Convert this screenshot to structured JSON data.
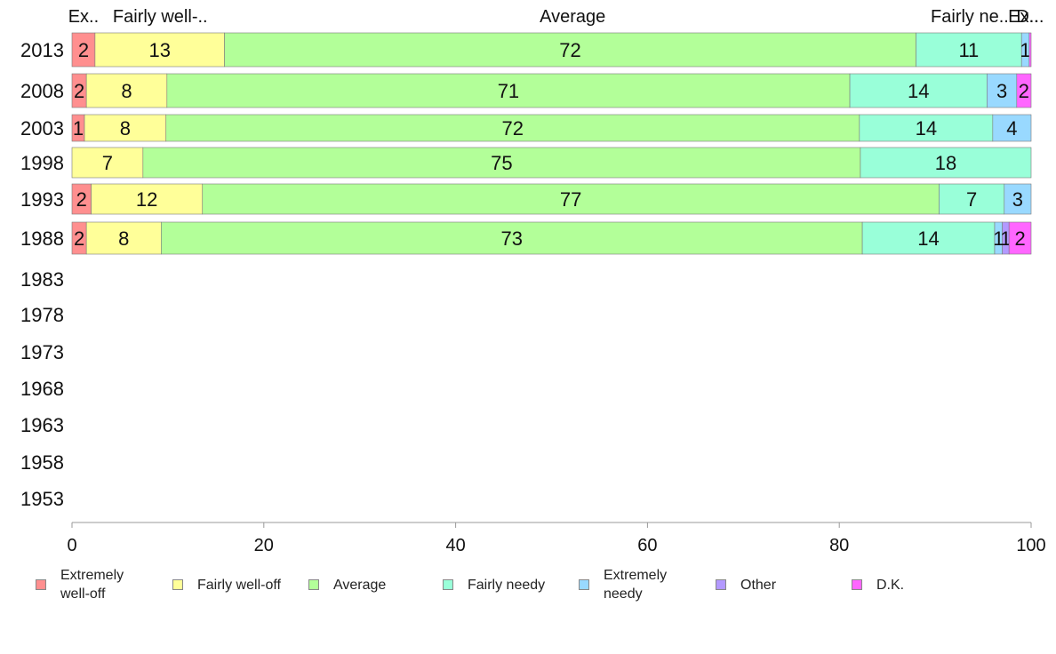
{
  "chart_data": {
    "type": "bar",
    "orientation": "horizontal",
    "stacked": true,
    "categories": [
      "2013",
      "2008",
      "2003",
      "1998",
      "1993",
      "1988",
      "1983",
      "1978",
      "1973",
      "1968",
      "1963",
      "1958",
      "1953"
    ],
    "top_labels": [
      "Ex..",
      "Fairly well-..",
      "Average",
      "Fairly ne..",
      "Ex..",
      "D..."
    ],
    "series": [
      {
        "name": "Extremely\nwell-off",
        "color": "#ff8f8f",
        "values": [
          2.4,
          1.5,
          1.3,
          0,
          2.0,
          1.5,
          null,
          null,
          null,
          null,
          null,
          null,
          null
        ],
        "labels": [
          "2",
          "2",
          "1",
          "",
          "2",
          "2"
        ]
      },
      {
        "name": "Fairly well-off",
        "color": "#ffff99",
        "values": [
          13.5,
          8.4,
          8.5,
          7.4,
          11.6,
          7.8,
          null,
          null,
          null,
          null,
          null,
          null,
          null
        ],
        "labels": [
          "13",
          "8",
          "8",
          "7",
          "12",
          "8"
        ]
      },
      {
        "name": "Average",
        "color": "#b3ff99",
        "values": [
          72.1,
          71.2,
          72.3,
          74.8,
          76.8,
          73.1,
          null,
          null,
          null,
          null,
          null,
          null,
          null
        ],
        "labels": [
          "72",
          "71",
          "72",
          "75",
          "77",
          "73"
        ]
      },
      {
        "name": "Fairly needy",
        "color": "#99ffd9",
        "values": [
          11.0,
          14.3,
          13.9,
          17.8,
          6.8,
          13.8,
          null,
          null,
          null,
          null,
          null,
          null,
          null
        ],
        "labels": [
          "11",
          "14",
          "14",
          "18",
          "7",
          "14"
        ]
      },
      {
        "name": "Extremely\nneedy",
        "color": "#99d9ff",
        "values": [
          0.8,
          3.1,
          4.0,
          0,
          2.8,
          0.8,
          null,
          null,
          null,
          null,
          null,
          null,
          null
        ],
        "labels": [
          "1",
          "3",
          "4",
          "",
          "3",
          "1"
        ]
      },
      {
        "name": "Other",
        "color": "#b399ff",
        "values": [
          0,
          0,
          0,
          0,
          0,
          0.7,
          null,
          null,
          null,
          null,
          null,
          null,
          null
        ],
        "labels": [
          "",
          "",
          "",
          "",
          "",
          "1"
        ]
      },
      {
        "name": "D.K.",
        "color": "#ff66ff",
        "values": [
          0.2,
          1.5,
          0,
          0,
          0,
          2.3,
          null,
          null,
          null,
          null,
          null,
          null,
          null
        ],
        "labels": [
          "",
          "2",
          "",
          "",
          "",
          "2"
        ]
      }
    ],
    "xlim": [
      0,
      100
    ],
    "xticks": [
      0,
      20,
      40,
      60,
      80,
      100
    ],
    "grid": false,
    "legend_position": "bottom"
  }
}
